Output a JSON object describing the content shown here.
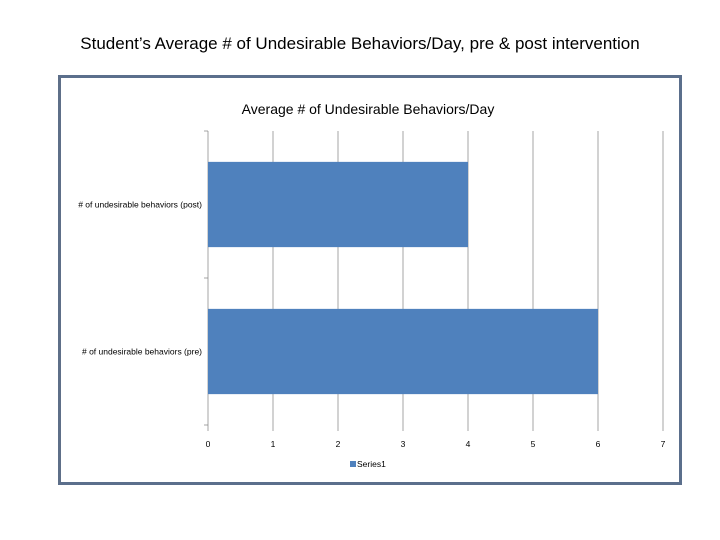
{
  "slide": {
    "title": "Student’s Average # of Undesirable Behaviors/Day, pre & post intervention"
  },
  "chart_data": {
    "type": "bar",
    "orientation": "horizontal",
    "title": "Average # of Undesirable Behaviors/Day",
    "categories": [
      "# of undesirable behaviors (post)",
      "# of undesirable behaviors (pre)"
    ],
    "series": [
      {
        "name": "Series1",
        "values": [
          4,
          6
        ],
        "color": "#4f81bd"
      }
    ],
    "xlim": [
      0,
      7
    ],
    "x_ticks": [
      "0",
      "1",
      "2",
      "3",
      "4",
      "5",
      "6",
      "7"
    ],
    "grid": true,
    "legend": "bottom"
  }
}
